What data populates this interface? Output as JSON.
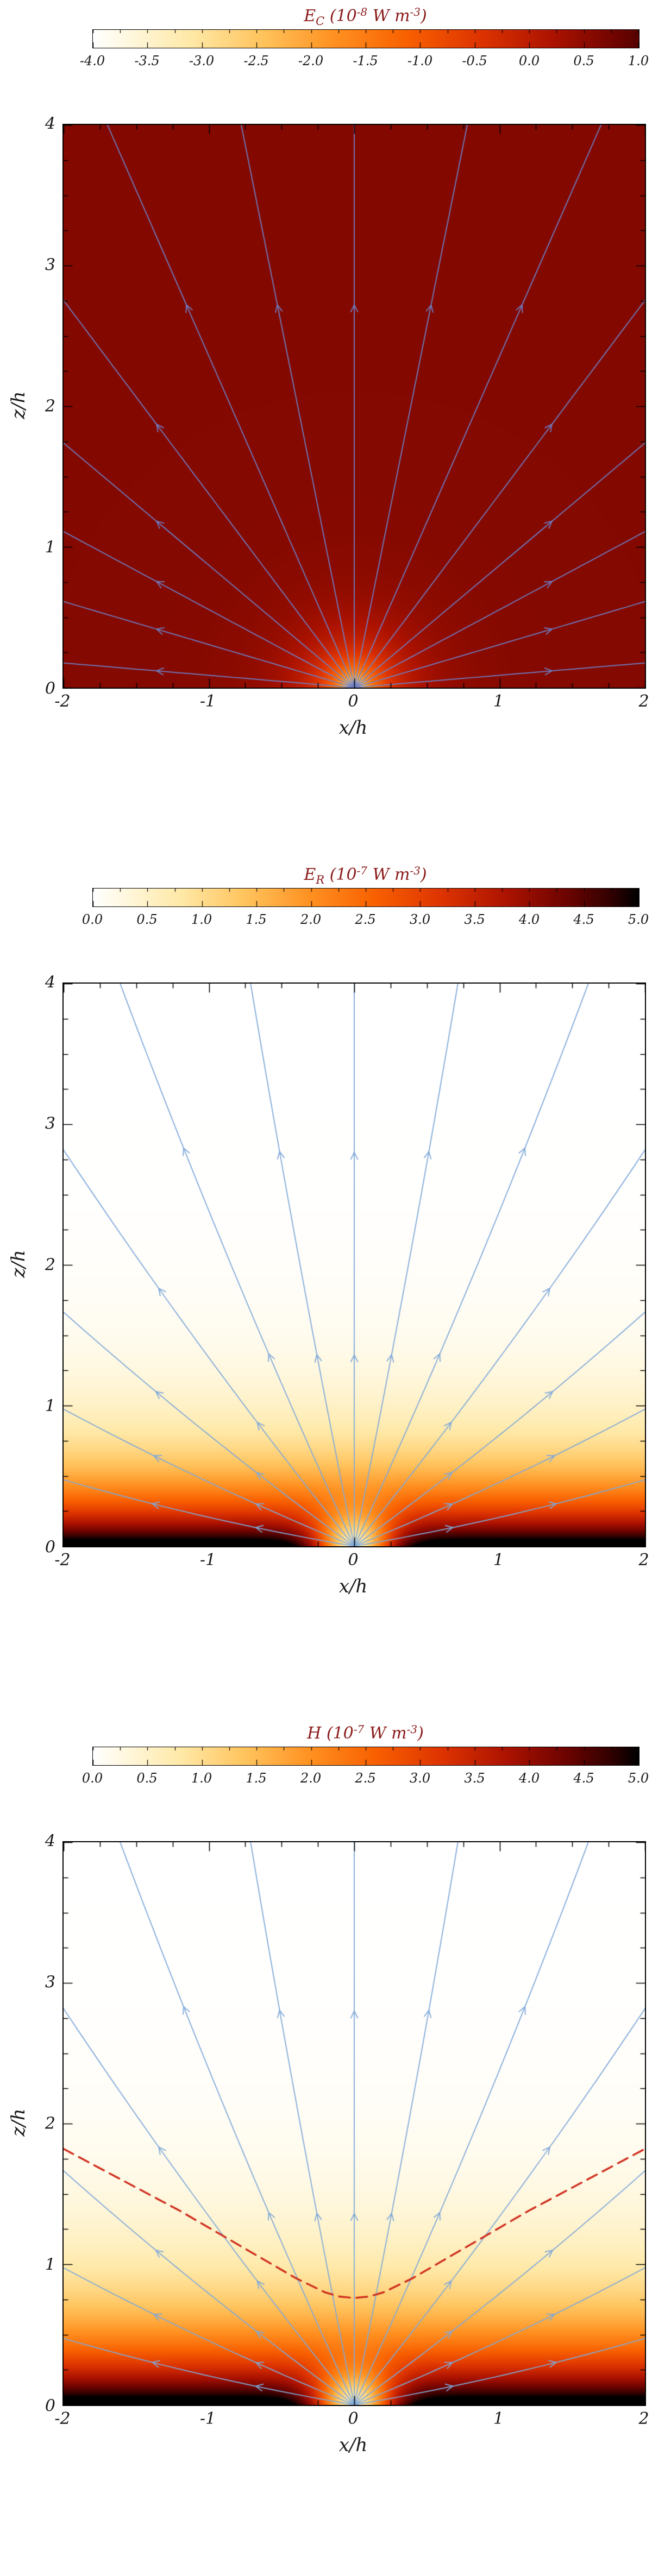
{
  "figure": {
    "background": "#ffffff",
    "n_panels": 3
  },
  "chart_data": {
    "type": "heatmap",
    "cmap_stops": [
      [
        0.0,
        "#ffffff"
      ],
      [
        0.07,
        "#fff6d8"
      ],
      [
        0.16,
        "#ffe9a8"
      ],
      [
        0.28,
        "#ffc35c"
      ],
      [
        0.4,
        "#ff9020"
      ],
      [
        0.52,
        "#f85f00"
      ],
      [
        0.64,
        "#dd3300"
      ],
      [
        0.76,
        "#ab1200"
      ],
      [
        0.87,
        "#6b0300"
      ],
      [
        0.95,
        "#300100"
      ],
      [
        1.0,
        "#000000"
      ]
    ],
    "panels": [
      {
        "id": "ec",
        "title_text": "E_C (10^-8 W m^-3)",
        "title_segments": [
          {
            "t": "E",
            "s": "base"
          },
          {
            "t": "C",
            "s": "sub"
          },
          {
            "t": " (10",
            "s": "base"
          },
          {
            "t": "-8",
            "s": "sup"
          },
          {
            "t": " W m",
            "s": "base"
          },
          {
            "t": "-3",
            "s": "sup"
          },
          {
            "t": ")",
            "s": "base"
          }
        ],
        "colorbar": {
          "ticks": [
            "-4.0",
            "-3.5",
            "-3.0",
            "-2.5",
            "-2.0",
            "-1.5",
            "-1.0",
            "-0.5",
            "0.0",
            "0.5",
            "1.0"
          ],
          "range": [
            -4,
            1
          ]
        },
        "cmap_scale": 0.9,
        "xlabel": "x/h",
        "ylabel": "z/h",
        "x_range": [
          -2,
          2
        ],
        "y_range": [
          0,
          4
        ],
        "x_ticks": [
          {
            "v": -2,
            "label": "-2"
          },
          {
            "v": -1,
            "label": "-1"
          },
          {
            "v": 0,
            "label": "0"
          },
          {
            "v": 1,
            "label": "1"
          },
          {
            "v": 2,
            "label": "2"
          }
        ],
        "y_ticks": [
          {
            "v": 0,
            "label": "0"
          },
          {
            "v": 1,
            "label": "1"
          },
          {
            "v": 2,
            "label": "2"
          },
          {
            "v": 3,
            "label": "3"
          },
          {
            "v": 4,
            "label": "4"
          }
        ],
        "field_model": {
          "type": "spot",
          "bg": 0.6,
          "amp": 4.6,
          "r0": 0.16,
          "p": 0.85
        },
        "streamlines": {
          "color": "#6f7fc8",
          "angles_deg": [
            5,
            17,
            29,
            41,
            54,
            67,
            79,
            90,
            101,
            113,
            126,
            139,
            151,
            163,
            175
          ],
          "arrow_fracs": [
            0.68
          ],
          "curve": 0
        }
      },
      {
        "id": "er",
        "title_text": "E_R (10^-7 W m^-3)",
        "title_segments": [
          {
            "t": "E",
            "s": "base"
          },
          {
            "t": "R",
            "s": "sub"
          },
          {
            "t": " (10",
            "s": "base"
          },
          {
            "t": "-7",
            "s": "sup"
          },
          {
            "t": " W m",
            "s": "base"
          },
          {
            "t": "-3",
            "s": "sup"
          },
          {
            "t": ")",
            "s": "base"
          }
        ],
        "colorbar": {
          "ticks": [
            "0.0",
            "0.5",
            "1.0",
            "1.5",
            "2.0",
            "2.5",
            "3.0",
            "3.5",
            "4.0",
            "4.5",
            "5.0"
          ],
          "range": [
            0,
            5
          ]
        },
        "cmap_scale": 1,
        "xlabel": "x/h",
        "ylabel": "z/h",
        "x_range": [
          -2,
          2
        ],
        "y_range": [
          0,
          4
        ],
        "x_ticks": [
          {
            "v": -2,
            "label": "-2"
          },
          {
            "v": -1,
            "label": "-1"
          },
          {
            "v": 0,
            "label": "0"
          },
          {
            "v": 1,
            "label": "1"
          },
          {
            "v": 2,
            "label": "2"
          }
        ],
        "y_ticks": [
          {
            "v": 0,
            "label": "0"
          },
          {
            "v": 1,
            "label": "1"
          },
          {
            "v": 2,
            "label": "2"
          },
          {
            "v": 3,
            "label": "3"
          },
          {
            "v": 4,
            "label": "4"
          }
        ],
        "field_model": {
          "type": "strat",
          "A": 5.6,
          "H": 0.42,
          "well_depth": 0.88,
          "well_r": 0.28
        },
        "streamlines": {
          "color": "#7fa8d9",
          "angles_deg": [
            10,
            23,
            37,
            52,
            66,
            79,
            90,
            101,
            114,
            128,
            143,
            157,
            170
          ],
          "arrow_fracs": [
            0.34,
            0.7
          ],
          "curve": 0.12
        }
      },
      {
        "id": "h",
        "title_text": "H (10^-7 W m^-3)",
        "title_segments": [
          {
            "t": "H",
            "s": "base"
          },
          {
            "t": " (10",
            "s": "base"
          },
          {
            "t": "-7",
            "s": "sup"
          },
          {
            "t": " W m",
            "s": "base"
          },
          {
            "t": "-3",
            "s": "sup"
          },
          {
            "t": ")",
            "s": "base"
          }
        ],
        "colorbar": {
          "ticks": [
            "0.0",
            "0.5",
            "1.0",
            "1.5",
            "2.0",
            "2.5",
            "3.0",
            "3.5",
            "4.0",
            "4.5",
            "5.0"
          ],
          "range": [
            0,
            5
          ]
        },
        "cmap_scale": 1,
        "xlabel": "x/h",
        "ylabel": "z/h",
        "x_range": [
          -2,
          2
        ],
        "y_range": [
          0,
          4
        ],
        "x_ticks": [
          {
            "v": -2,
            "label": "-2"
          },
          {
            "v": -1,
            "label": "-1"
          },
          {
            "v": 0,
            "label": "0"
          },
          {
            "v": 1,
            "label": "1"
          },
          {
            "v": 2,
            "label": "2"
          }
        ],
        "y_ticks": [
          {
            "v": 0,
            "label": "0"
          },
          {
            "v": 1,
            "label": "1"
          },
          {
            "v": 2,
            "label": "2"
          },
          {
            "v": 3,
            "label": "3"
          },
          {
            "v": 4,
            "label": "4"
          }
        ],
        "field_model": {
          "type": "strat",
          "A": 5.6,
          "H": 0.5,
          "well_depth": 0.88,
          "well_r": 0.28
        },
        "streamlines": {
          "color": "#7fa8d9",
          "angles_deg": [
            10,
            23,
            37,
            52,
            66,
            79,
            90,
            101,
            114,
            128,
            143,
            157,
            170
          ],
          "arrow_fracs": [
            0.34,
            0.7
          ],
          "curve": 0.12
        },
        "dashed_curve": {
          "color": "#d03020",
          "points": [
            [
              -2.0,
              1.82
            ],
            [
              -1.8,
              1.71
            ],
            [
              -1.6,
              1.6
            ],
            [
              -1.4,
              1.49
            ],
            [
              -1.2,
              1.38
            ],
            [
              -1.0,
              1.26
            ],
            [
              -0.8,
              1.14
            ],
            [
              -0.6,
              1.02
            ],
            [
              -0.4,
              0.9
            ],
            [
              -0.2,
              0.8
            ],
            [
              -0.1,
              0.77
            ],
            [
              0.0,
              0.76
            ],
            [
              0.1,
              0.77
            ],
            [
              0.2,
              0.8
            ],
            [
              0.4,
              0.9
            ],
            [
              0.6,
              1.02
            ],
            [
              0.8,
              1.14
            ],
            [
              1.0,
              1.26
            ],
            [
              1.2,
              1.38
            ],
            [
              1.4,
              1.49
            ],
            [
              1.6,
              1.6
            ],
            [
              1.8,
              1.71
            ],
            [
              2.0,
              1.82
            ]
          ]
        }
      }
    ]
  }
}
